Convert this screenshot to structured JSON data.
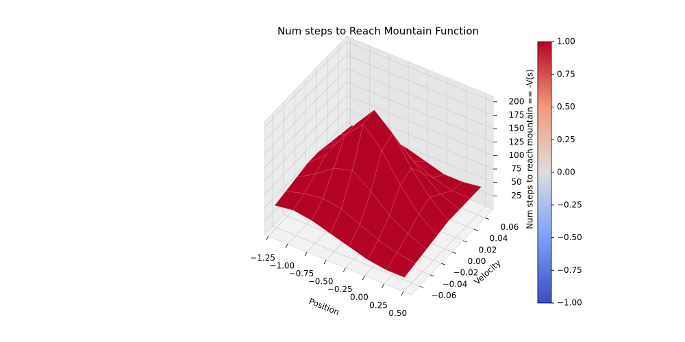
{
  "chart_data": {
    "type": "surface",
    "title": "Num steps to Reach Mountain Function",
    "xlabel": "Position",
    "ylabel": "Velocity",
    "color": "#b40426",
    "x": [
      -1.2,
      -0.96,
      -0.72,
      -0.48,
      -0.24,
      0.0,
      0.24,
      0.48
    ],
    "y": [
      -0.07,
      -0.05,
      -0.03,
      -0.01,
      0.01,
      0.03,
      0.05,
      0.07
    ],
    "z": [
      [
        55,
        60,
        65,
        70,
        70,
        65,
        60,
        55
      ],
      [
        60,
        70,
        85,
        100,
        100,
        85,
        70,
        60
      ],
      [
        55,
        75,
        110,
        150,
        150,
        115,
        80,
        60
      ],
      [
        45,
        70,
        120,
        185,
        190,
        130,
        80,
        55
      ],
      [
        35,
        55,
        95,
        150,
        160,
        110,
        65,
        45
      ],
      [
        25,
        40,
        65,
        100,
        110,
        80,
        50,
        35
      ],
      [
        20,
        30,
        45,
        60,
        70,
        55,
        40,
        35
      ],
      [
        20,
        25,
        30,
        35,
        40,
        40,
        40,
        40
      ]
    ],
    "xlim": [
      -1.3,
      0.6
    ],
    "ylim": [
      -0.075,
      0.075
    ],
    "zlim": [
      0,
      210
    ],
    "xticks": [
      {
        "value": -1.25,
        "label": "−1.25"
      },
      {
        "value": -1.0,
        "label": "−1.00"
      },
      {
        "value": -0.75,
        "label": "−0.75"
      },
      {
        "value": -0.5,
        "label": "−0.50"
      },
      {
        "value": -0.25,
        "label": "−0.25"
      },
      {
        "value": 0,
        "label": "0.00"
      },
      {
        "value": 0.25,
        "label": "0.25"
      },
      {
        "value": 0.5,
        "label": "0.50"
      }
    ],
    "yticks": [
      {
        "value": -0.06,
        "label": "−0.06"
      },
      {
        "value": -0.04,
        "label": "−0.04"
      },
      {
        "value": -0.02,
        "label": "−0.02"
      },
      {
        "value": 0,
        "label": "0.00"
      },
      {
        "value": 0.02,
        "label": "0.02"
      },
      {
        "value": 0.04,
        "label": "0.04"
      },
      {
        "value": 0.06,
        "label": "0.06"
      }
    ],
    "zticks": [
      25,
      50,
      75,
      100,
      125,
      150,
      175,
      200
    ],
    "grid": true,
    "colorbar": {
      "label": "Num steps to reach mountain == -V(s)",
      "clim": [
        -1,
        1
      ],
      "ticks": [
        {
          "value": -1,
          "label": "−1.00"
        },
        {
          "value": -0.75,
          "label": "−0.75"
        },
        {
          "value": -0.5,
          "label": "−0.50"
        },
        {
          "value": -0.25,
          "label": "−0.25"
        },
        {
          "value": 0,
          "label": "0.00"
        },
        {
          "value": 0.25,
          "label": "0.25"
        },
        {
          "value": 0.5,
          "label": "0.50"
        },
        {
          "value": 0.75,
          "label": "0.75"
        },
        {
          "value": 1,
          "label": "1.00"
        }
      ]
    }
  }
}
